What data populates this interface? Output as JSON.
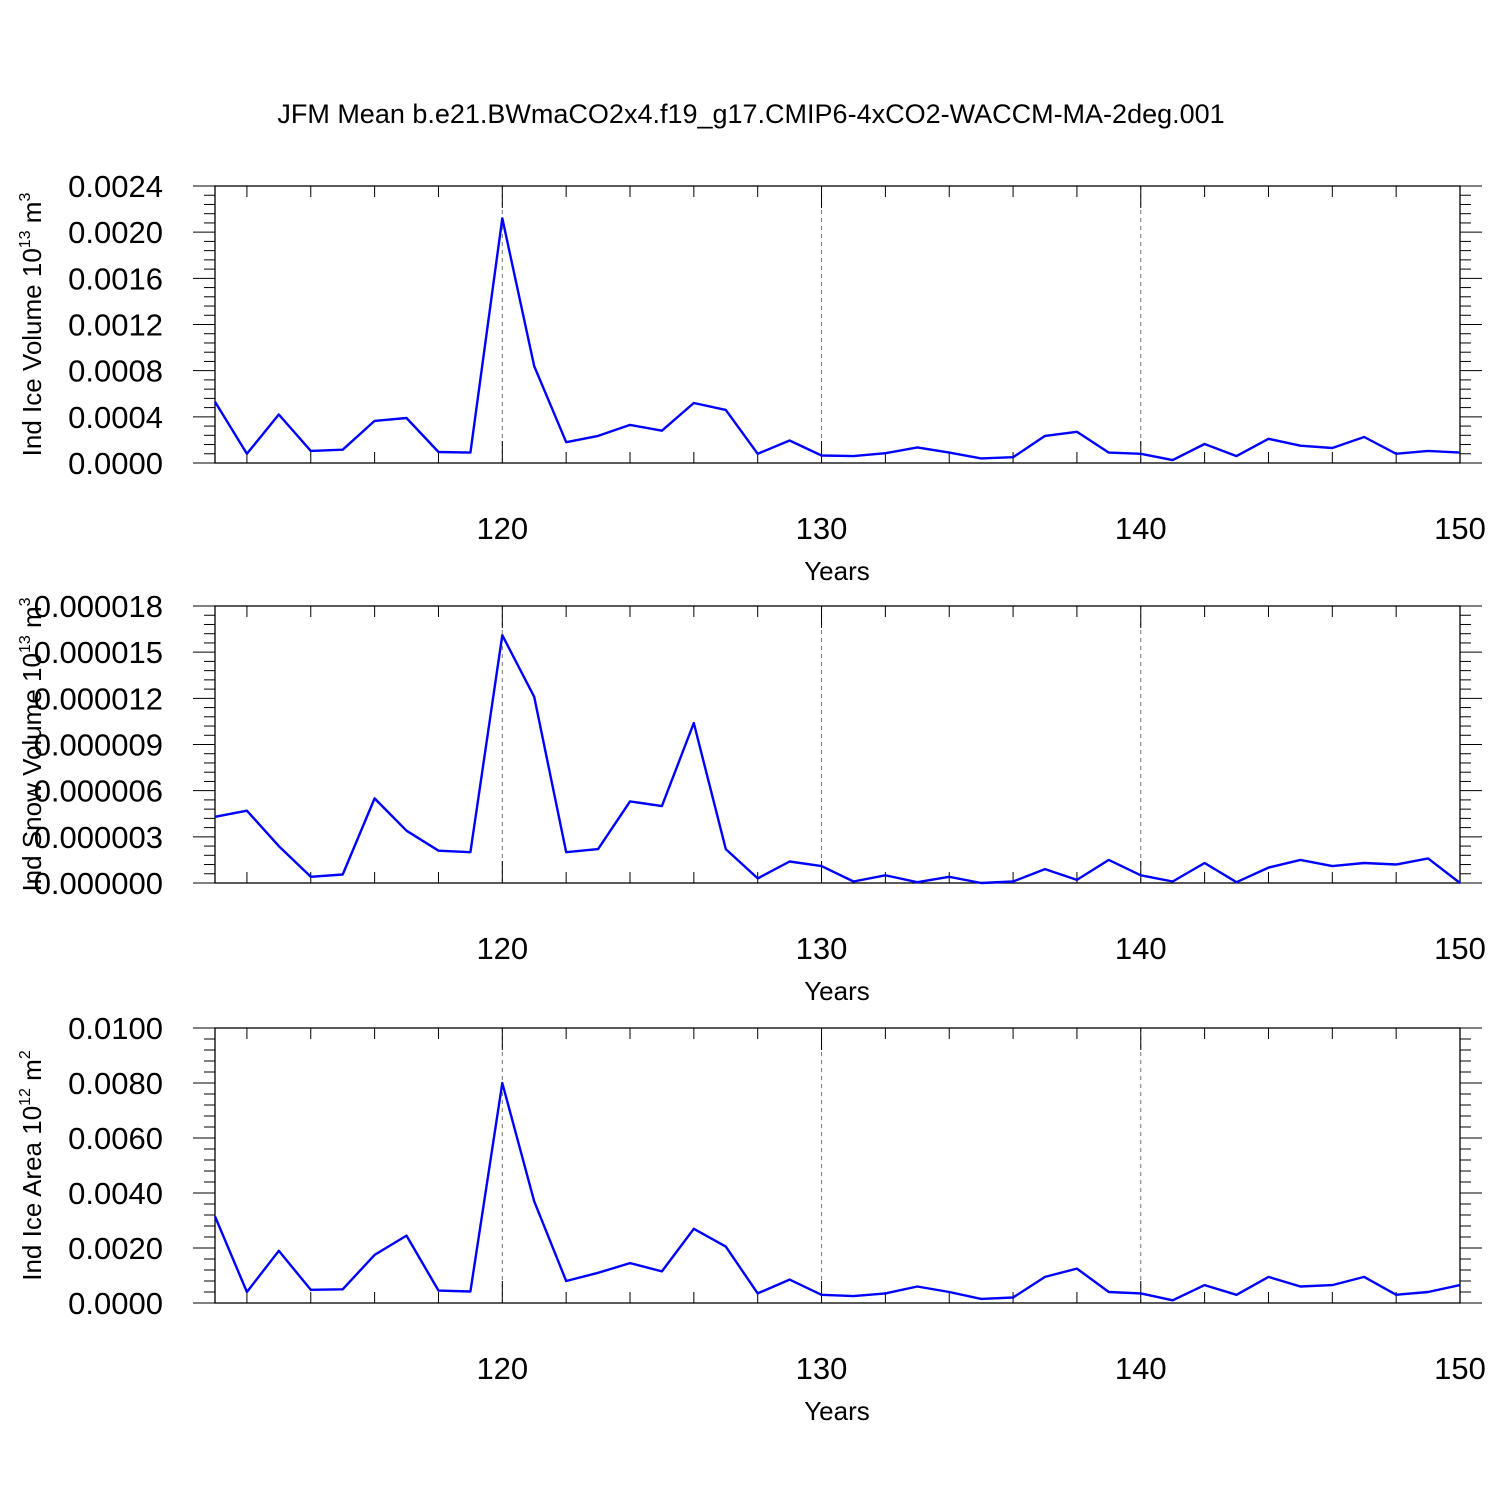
{
  "figure": {
    "title": "JFM Mean b.e21.BWmaCO2x4.f19_g17.CMIP6-4xCO2-WACCM-MA-2deg.001"
  },
  "chart_data": [
    {
      "type": "line",
      "ylabel": {
        "text": "Ind Ice Volume 10",
        "sup": "13",
        "unit": " m",
        "unit_sup": "3"
      },
      "xlabel": "Years",
      "xlim": [
        111,
        150
      ],
      "ylim": [
        0,
        0.0024
      ],
      "x_ticks": [
        "120",
        "130",
        "140",
        "150"
      ],
      "y_ticks": [
        "0.0000",
        "0.0004",
        "0.0008",
        "0.0012",
        "0.0016",
        "0.0020",
        "0.0024"
      ],
      "grid": "dashed vertical at major x ticks",
      "line_color": "#0000ff",
      "series": [
        {
          "x": [
            111,
            112,
            113,
            114,
            115,
            116,
            117,
            118,
            119,
            120,
            121,
            122,
            123,
            124,
            125,
            126,
            127,
            128,
            129,
            130,
            131,
            132,
            133,
            134,
            135,
            136,
            137,
            138,
            139,
            140,
            141,
            142,
            143,
            144,
            145,
            146,
            147,
            148,
            149,
            150
          ],
          "values": [
            0.00053,
            8e-05,
            0.00042,
            0.000105,
            0.000115,
            0.000365,
            0.00039,
            9.5e-05,
            9e-05,
            0.00212,
            0.00084,
            0.00018,
            0.000235,
            0.00033,
            0.00028,
            0.00052,
            0.00046,
            8e-05,
            0.000195,
            6.5e-05,
            6e-05,
            8.5e-05,
            0.000135,
            9e-05,
            4e-05,
            5e-05,
            0.000235,
            0.00027,
            9e-05,
            8e-05,
            2.5e-05,
            0.000165,
            6e-05,
            0.00021,
            0.00015,
            0.00013,
            0.000225,
            8e-05,
            0.000105,
            9e-05
          ]
        }
      ]
    },
    {
      "type": "line",
      "ylabel": {
        "text": "Ind Snow Volume 10",
        "sup": "13",
        "unit": " m",
        "unit_sup": "3"
      },
      "xlabel": "Years",
      "xlim": [
        111,
        150
      ],
      "ylim": [
        0,
        1.8e-05
      ],
      "x_ticks": [
        "120",
        "130",
        "140",
        "150"
      ],
      "y_ticks": [
        "0.000000",
        "0.000003",
        "0.000006",
        "0.000009",
        "0.000012",
        "0.000015",
        "0.000018"
      ],
      "grid": "dashed vertical at major x ticks",
      "line_color": "#0000ff",
      "series": [
        {
          "x": [
            111,
            112,
            113,
            114,
            115,
            116,
            117,
            118,
            119,
            120,
            121,
            122,
            123,
            124,
            125,
            126,
            127,
            128,
            129,
            130,
            131,
            132,
            133,
            134,
            135,
            136,
            137,
            138,
            139,
            140,
            141,
            142,
            143,
            144,
            145,
            146,
            147,
            148,
            149,
            150
          ],
          "values": [
            4.3e-06,
            4.7e-06,
            2.4e-06,
            4e-07,
            5.5e-07,
            5.5e-06,
            3.4e-06,
            2.1e-06,
            2e-06,
            1.61e-05,
            1.21e-05,
            2e-06,
            2.2e-06,
            5.3e-06,
            5e-06,
            1.04e-05,
            2.2e-06,
            3e-07,
            1.4e-06,
            1.1e-06,
            1e-07,
            5e-07,
            5e-08,
            4e-07,
            0.0,
            1e-07,
            9e-07,
            2e-07,
            1.5e-06,
            5e-07,
            1e-07,
            1.3e-06,
            5e-08,
            1e-06,
            1.5e-06,
            1.1e-06,
            1.3e-06,
            1.2e-06,
            1.6e-06,
            0.0
          ]
        }
      ]
    },
    {
      "type": "line",
      "ylabel": {
        "text": "Ind Ice Area 10",
        "sup": "12",
        "unit": " m",
        "unit_sup": "2"
      },
      "xlabel": "Years",
      "xlim": [
        111,
        150
      ],
      "ylim": [
        0,
        0.01
      ],
      "x_ticks": [
        "120",
        "130",
        "140",
        "150"
      ],
      "y_ticks": [
        "0.0000",
        "0.0020",
        "0.0040",
        "0.0060",
        "0.0080",
        "0.0100"
      ],
      "grid": "dashed vertical at major x ticks",
      "line_color": "#0000ff",
      "series": [
        {
          "x": [
            111,
            112,
            113,
            114,
            115,
            116,
            117,
            118,
            119,
            120,
            121,
            122,
            123,
            124,
            125,
            126,
            127,
            128,
            129,
            130,
            131,
            132,
            133,
            134,
            135,
            136,
            137,
            138,
            139,
            140,
            141,
            142,
            143,
            144,
            145,
            146,
            147,
            148,
            149,
            150
          ],
          "values": [
            0.00315,
            0.0004,
            0.0019,
            0.00048,
            0.0005,
            0.00175,
            0.00245,
            0.00045,
            0.00042,
            0.008,
            0.0037,
            0.0008,
            0.0011,
            0.00145,
            0.00115,
            0.0027,
            0.00205,
            0.00035,
            0.00085,
            0.0003,
            0.00025,
            0.00035,
            0.0006,
            0.0004,
            0.00015,
            0.0002,
            0.00095,
            0.00125,
            0.0004,
            0.00035,
            0.0001,
            0.00065,
            0.0003,
            0.00095,
            0.0006,
            0.00065,
            0.00095,
            0.0003,
            0.0004,
            0.00065
          ]
        }
      ]
    }
  ]
}
